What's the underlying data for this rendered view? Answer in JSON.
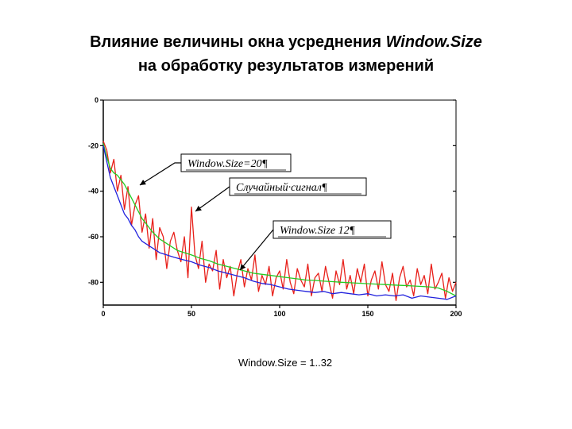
{
  "slide": {
    "title_line1_prefix": "Влияние величины окна усреднения ",
    "title_line1_em": "Window.Size",
    "title_line2": "на обработку результатов измерений",
    "caption": "Window.Size  = 1..32"
  },
  "chart_data": {
    "type": "line",
    "xlim": [
      0,
      200
    ],
    "ylim": [
      -90,
      0
    ],
    "x_ticks": [
      0,
      50,
      100,
      150,
      200
    ],
    "y_ticks": [
      0,
      -20,
      -40,
      -60,
      -80
    ],
    "grid": false,
    "annotations": [
      {
        "text": "Window.Size=20¶",
        "series": "green"
      },
      {
        "text": "Случайный·сигнал¶",
        "series": "red"
      },
      {
        "text": "Window.Size  12¶",
        "series": "blue"
      }
    ],
    "series": [
      {
        "color": "#e8201a",
        "x": [
          0,
          2,
          4,
          6,
          8,
          10,
          12,
          14,
          16,
          18,
          20,
          22,
          24,
          26,
          28,
          30,
          32,
          34,
          36,
          38,
          40,
          42,
          44,
          46,
          48,
          50,
          52,
          54,
          56,
          58,
          60,
          62,
          64,
          66,
          68,
          70,
          72,
          74,
          76,
          78,
          80,
          82,
          84,
          86,
          88,
          90,
          92,
          94,
          96,
          98,
          100,
          102,
          104,
          106,
          108,
          110,
          112,
          114,
          116,
          118,
          120,
          122,
          124,
          126,
          128,
          130,
          132,
          134,
          136,
          138,
          140,
          142,
          144,
          146,
          148,
          150,
          152,
          154,
          156,
          158,
          160,
          162,
          164,
          166,
          168,
          170,
          172,
          174,
          176,
          178,
          180,
          182,
          184,
          186,
          188,
          190,
          192,
          194,
          196,
          198,
          200
        ],
        "values": [
          -18,
          -22,
          -32,
          -26,
          -40,
          -33,
          -48,
          -38,
          -55,
          -46,
          -42,
          -58,
          -50,
          -65,
          -52,
          -70,
          -56,
          -60,
          -74,
          -62,
          -58,
          -66,
          -71,
          -60,
          -78,
          -47,
          -68,
          -74,
          -62,
          -80,
          -72,
          -75,
          -66,
          -83,
          -70,
          -78,
          -73,
          -86,
          -76,
          -70,
          -82,
          -74,
          -79,
          -68,
          -84,
          -77,
          -81,
          -73,
          -86,
          -78,
          -75,
          -83,
          -70,
          -80,
          -85,
          -74,
          -79,
          -82,
          -72,
          -86,
          -78,
          -76,
          -84,
          -73,
          -80,
          -87,
          -75,
          -81,
          -70,
          -83,
          -77,
          -85,
          -74,
          -80,
          -72,
          -86,
          -79,
          -75,
          -83,
          -71,
          -81,
          -84,
          -76,
          -88,
          -78,
          -73,
          -82,
          -79,
          -86,
          -74,
          -81,
          -77,
          -85,
          -72,
          -83,
          -80,
          -76,
          -87,
          -78,
          -84,
          -80
        ]
      },
      {
        "color": "#22cc22",
        "x": [
          0,
          2,
          4,
          6,
          8,
          10,
          12,
          14,
          16,
          18,
          20,
          22,
          24,
          26,
          28,
          30,
          32,
          34,
          36,
          38,
          40,
          42,
          44,
          46,
          48,
          50,
          55,
          60,
          65,
          70,
          75,
          80,
          85,
          90,
          95,
          100,
          105,
          110,
          115,
          120,
          125,
          130,
          135,
          140,
          145,
          150,
          155,
          160,
          165,
          170,
          175,
          180,
          185,
          190,
          195,
          200
        ],
        "values": [
          -19,
          -25,
          -30,
          -32,
          -33,
          -35,
          -37,
          -40,
          -43,
          -46,
          -49,
          -52,
          -54,
          -56,
          -58,
          -59.5,
          -61,
          -62,
          -63,
          -64,
          -65,
          -66,
          -66.5,
          -67,
          -67.5,
          -68,
          -69.5,
          -70.5,
          -72,
          -73,
          -74,
          -75,
          -76,
          -76.5,
          -77,
          -77.5,
          -78,
          -78.5,
          -79,
          -79.2,
          -79.5,
          -79.7,
          -80,
          -80.2,
          -80.4,
          -80.6,
          -80.8,
          -81,
          -81.2,
          -81.4,
          -81.6,
          -81.8,
          -82,
          -82.5,
          -84,
          -86
        ]
      },
      {
        "color": "#2222dd",
        "x": [
          0,
          2,
          4,
          6,
          8,
          10,
          12,
          14,
          16,
          18,
          20,
          22,
          24,
          26,
          28,
          30,
          32,
          34,
          36,
          38,
          40,
          45,
          50,
          55,
          60,
          65,
          70,
          75,
          80,
          85,
          90,
          95,
          100,
          105,
          110,
          115,
          120,
          125,
          130,
          135,
          140,
          145,
          150,
          155,
          160,
          165,
          170,
          175,
          180,
          185,
          190,
          195,
          200
        ],
        "values": [
          -20,
          -27,
          -34,
          -38,
          -42,
          -46,
          -50,
          -52,
          -55,
          -57,
          -60,
          -62,
          -63,
          -64,
          -65,
          -66,
          -67,
          -67.5,
          -68,
          -68.5,
          -69,
          -70,
          -71,
          -72.5,
          -73.5,
          -75,
          -76,
          -77,
          -78,
          -79.5,
          -80.5,
          -81,
          -82,
          -83,
          -83.5,
          -84,
          -84.5,
          -84,
          -85,
          -84.5,
          -85,
          -85.5,
          -85,
          -86,
          -85.5,
          -86,
          -85.5,
          -87,
          -86,
          -86.5,
          -87,
          -87.5,
          -86
        ]
      }
    ]
  }
}
